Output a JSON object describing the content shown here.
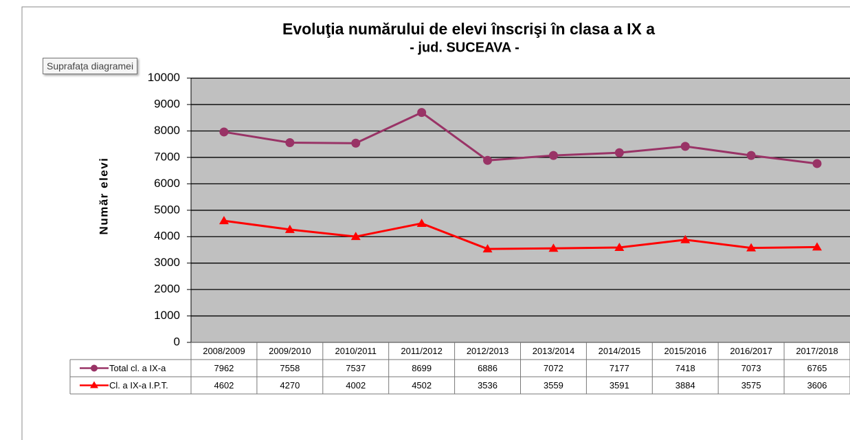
{
  "tooltip": "Suprafața diagramei",
  "chart_data": {
    "type": "line",
    "title": "Evoluţia numărului de elevi înscrişi în clasa a IX a",
    "subtitle": "- jud. SUCEAVA -",
    "ylabel": "Număr elevi",
    "categories": [
      "2008/2009",
      "2009/2010",
      "2010/2011",
      "2011/2012",
      "2012/2013",
      "2013/2014",
      "2014/2015",
      "2015/2016",
      "2016/2017",
      "2017/2018"
    ],
    "series": [
      {
        "name": "Total cl. a IX-a",
        "color": "#993366",
        "marker": "circle",
        "values": [
          7962,
          7558,
          7537,
          8699,
          6886,
          7072,
          7177,
          7418,
          7073,
          6765
        ]
      },
      {
        "name": "Cl. a IX-a I.P.T.",
        "color": "#ff0000",
        "marker": "triangle",
        "values": [
          4602,
          4270,
          4002,
          4502,
          3536,
          3559,
          3591,
          3884,
          3575,
          3606
        ]
      }
    ],
    "ylim": [
      0,
      10000
    ],
    "yticks": [
      0,
      1000,
      2000,
      3000,
      4000,
      5000,
      6000,
      7000,
      8000,
      9000,
      10000
    ],
    "grid": true,
    "data_table": true
  }
}
